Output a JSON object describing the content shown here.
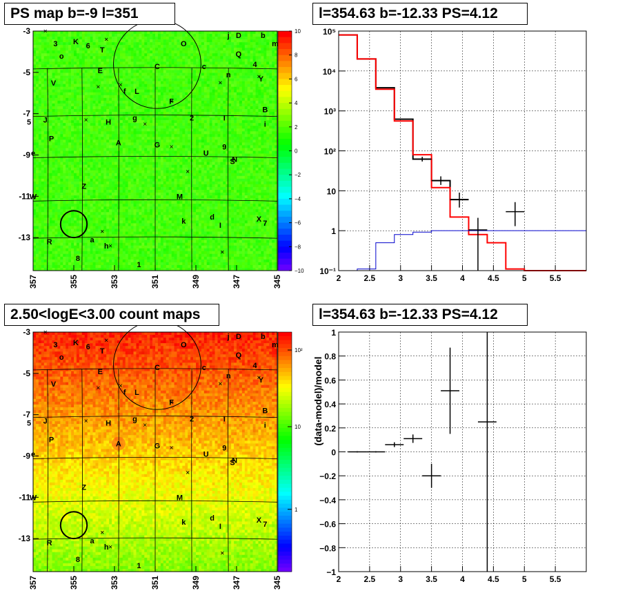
{
  "panels": {
    "ps_map": {
      "title": "PS map b=-9 l=351",
      "y_ticks": [
        "-3",
        "-5",
        "-7",
        "-9",
        "-11",
        "-13"
      ],
      "x_ticks": [
        "357",
        "355",
        "353",
        "351",
        "349",
        "347",
        "345"
      ],
      "palette_ticks": [
        "10",
        "8",
        "6",
        "4",
        "2",
        "0",
        "−2",
        "−4",
        "−6",
        "−8",
        "−10"
      ],
      "palette_range": [
        -10,
        10
      ]
    },
    "count_map": {
      "title": "2.50<logE<3.00 count maps",
      "y_ticks": [
        "-3",
        "-5",
        "-7",
        "-9",
        "-11",
        "-13"
      ],
      "x_ticks": [
        "357",
        "355",
        "353",
        "351",
        "349",
        "347",
        "345"
      ],
      "palette_ticks": [
        "10²",
        "10",
        "1"
      ],
      "palette_range": "log"
    },
    "spectrum": {
      "title": "l=354.63 b=-12.33 PS=4.12"
    },
    "residual": {
      "title": "l=354.63 b=-12.33 PS=4.12"
    }
  },
  "source_labels": [
    {
      "t": "3",
      "l": 355.9,
      "b": -3.6
    },
    {
      "t": "K",
      "l": 354.9,
      "b": -3.5
    },
    {
      "t": "6",
      "l": 354.3,
      "b": -3.7
    },
    {
      "t": "T",
      "l": 353.6,
      "b": -3.9
    },
    {
      "t": "o",
      "l": 355.6,
      "b": -4.2
    },
    {
      "t": "O",
      "l": 349.6,
      "b": -3.6
    },
    {
      "t": "j",
      "l": 347.4,
      "b": -3.2
    },
    {
      "t": "D",
      "l": 346.9,
      "b": -3.2
    },
    {
      "t": "b",
      "l": 345.7,
      "b": -3.2
    },
    {
      "t": "m",
      "l": 345.1,
      "b": -3.6
    },
    {
      "t": "Q",
      "l": 346.9,
      "b": -4.1
    },
    {
      "t": "4",
      "l": 346.1,
      "b": -4.6
    },
    {
      "t": "C",
      "l": 350.9,
      "b": -4.7
    },
    {
      "t": "c",
      "l": 348.6,
      "b": -4.7
    },
    {
      "t": "E",
      "l": 353.7,
      "b": -4.9
    },
    {
      "t": "n",
      "l": 347.4,
      "b": -5.1
    },
    {
      "t": "Y",
      "l": 345.8,
      "b": -5.3
    },
    {
      "t": "V",
      "l": 356.0,
      "b": -5.5
    },
    {
      "t": "f",
      "l": 352.5,
      "b": -5.9
    },
    {
      "t": "L",
      "l": 351.9,
      "b": -5.9
    },
    {
      "t": "F",
      "l": 350.2,
      "b": -6.4
    },
    {
      "t": "B",
      "l": 345.6,
      "b": -6.8
    },
    {
      "t": "5",
      "l": 357.2,
      "b": -7.4
    },
    {
      "t": "J",
      "l": 356.4,
      "b": -7.3
    },
    {
      "t": "H",
      "l": 353.3,
      "b": -7.4
    },
    {
      "t": "g",
      "l": 352.0,
      "b": -7.2
    },
    {
      "t": "2",
      "l": 349.2,
      "b": -7.2
    },
    {
      "t": "I",
      "l": 347.6,
      "b": -7.2
    },
    {
      "t": "i",
      "l": 345.6,
      "b": -7.5
    },
    {
      "t": "P",
      "l": 356.1,
      "b": -8.2
    },
    {
      "t": "A",
      "l": 352.8,
      "b": -8.4
    },
    {
      "t": "G",
      "l": 350.9,
      "b": -8.5
    },
    {
      "t": "9",
      "l": 347.6,
      "b": -8.6
    },
    {
      "t": "U",
      "l": 348.5,
      "b": -8.9
    },
    {
      "t": "e",
      "l": 357.0,
      "b": -8.9
    },
    {
      "t": "S",
      "l": 347.2,
      "b": -9.3
    },
    {
      "t": "N",
      "l": 347.1,
      "b": -9.2
    },
    {
      "t": "Z",
      "l": 354.5,
      "b": -10.5
    },
    {
      "t": "W",
      "l": 357.0,
      "b": -11.0
    },
    {
      "t": "M",
      "l": 349.8,
      "b": -11.0
    },
    {
      "t": "k",
      "l": 349.6,
      "b": -12.2
    },
    {
      "t": "d",
      "l": 348.2,
      "b": -12.0
    },
    {
      "t": "I",
      "l": 347.8,
      "b": -12.4
    },
    {
      "t": "X",
      "l": 345.9,
      "b": -12.1
    },
    {
      "t": "7",
      "l": 345.6,
      "b": -12.3
    },
    {
      "t": "R",
      "l": 356.2,
      "b": -13.2
    },
    {
      "t": "a",
      "l": 354.1,
      "b": -13.1
    },
    {
      "t": "h",
      "l": 353.4,
      "b": -13.4
    },
    {
      "t": "8",
      "l": 354.8,
      "b": -14.0
    },
    {
      "t": "1",
      "l": 351.8,
      "b": -14.3
    }
  ],
  "crosses": [
    {
      "l": 356.4,
      "b": -3.0
    },
    {
      "l": 353.4,
      "b": -3.4
    },
    {
      "l": 353.8,
      "b": -5.7
    },
    {
      "l": 352.7,
      "b": -5.6
    },
    {
      "l": 354.4,
      "b": -7.3
    },
    {
      "l": 351.5,
      "b": -7.5
    },
    {
      "l": 350.2,
      "b": -6.4
    },
    {
      "l": 350.2,
      "b": -8.6
    },
    {
      "l": 349.4,
      "b": -9.8
    },
    {
      "l": 347.8,
      "b": -5.5
    },
    {
      "l": 345.9,
      "b": -5.2
    },
    {
      "l": 353.6,
      "b": -12.7
    },
    {
      "l": 347.7,
      "b": -13.7
    },
    {
      "l": 353.2,
      "b": -13.4
    }
  ],
  "circles": [
    {
      "l": 350.9,
      "b": -4.6,
      "r": 2.15
    },
    {
      "l": 355.0,
      "b": -12.35,
      "r": 0.65
    }
  ],
  "chart_data": [
    {
      "type": "heatmap",
      "title": "PS map b=-9 l=351",
      "xlabel": "",
      "ylabel": "",
      "xlim": [
        357,
        345
      ],
      "ylim": [
        -14.6,
        -3
      ],
      "zlim": [
        -10,
        10
      ],
      "note_values": "significance map, mostly 0 to 3"
    },
    {
      "type": "heatmap",
      "title": "2.50<logE<3.00 count maps",
      "xlim": [
        357,
        345
      ],
      "ylim": [
        -14.6,
        -3
      ],
      "zlim_log": [
        0.4,
        250
      ],
      "gradient_top_to_bottom": [
        150,
        80,
        30,
        12,
        6,
        3
      ]
    },
    {
      "type": "line",
      "title": "l=354.63 b=-12.33 PS=4.12",
      "xlim": [
        2,
        6
      ],
      "ylim_log": [
        0.1,
        100000
      ],
      "series": [
        {
          "name": "",
          "color": "#000000",
          "style": "step",
          "x": [
            2.0,
            2.3,
            2.6,
            2.9,
            3.2,
            3.5,
            3.8,
            4.1,
            4.4,
            4.7,
            5.0
          ],
          "values": [
            80000,
            20000,
            3800,
            620,
            62,
            18,
            6,
            0,
            0,
            0,
            0
          ],
          "errors": [
            null,
            null,
            null,
            null,
            8,
            6,
            3,
            1.8,
            0.9,
            1.6,
            0
          ]
        },
        {
          "name": "",
          "color": "#ff0000",
          "style": "step",
          "x": [
            2.0,
            2.3,
            2.6,
            2.9,
            3.2,
            3.5,
            3.8,
            4.1,
            4.4,
            4.7,
            5.0
          ],
          "values": [
            80000,
            20000,
            3500,
            560,
            80,
            12,
            2.2,
            0.8,
            0.5,
            0.11,
            0.1
          ]
        },
        {
          "name": "",
          "color": "#0000cc",
          "style": "step",
          "x": [
            2.0,
            2.3,
            2.6,
            2.9,
            3.2,
            3.5,
            3.8,
            4.1,
            4.4,
            4.7,
            5.0
          ],
          "values": [
            0.1,
            0.11,
            0.5,
            0.8,
            0.92,
            1.0,
            1.0,
            1.0,
            1.0,
            1.0,
            1.0
          ]
        }
      ],
      "points": [
        {
          "x": 3.35,
          "y": 62,
          "ex": 0.15,
          "elo": 54,
          "ehi": 71
        },
        {
          "x": 3.65,
          "y": 18,
          "ex": 0.15,
          "elo": 14,
          "ehi": 23
        },
        {
          "x": 3.95,
          "y": 6,
          "ex": 0.15,
          "elo": 3.8,
          "ehi": 9
        },
        {
          "x": 4.25,
          "y": 1.05,
          "ex": 0.15,
          "elo": 0.1,
          "ehi": 2.1
        },
        {
          "x": 4.85,
          "y": 3,
          "ex": 0.15,
          "elo": 1.3,
          "ehi": 5.2
        }
      ],
      "x_ticks": [
        "2",
        "2.5",
        "3",
        "3.5",
        "4",
        "4.5",
        "5",
        "5.5"
      ],
      "y_ticks": [
        "10⁻¹",
        "1",
        "10",
        "10²",
        "10³",
        "10⁴",
        "10⁵"
      ]
    },
    {
      "type": "scatter",
      "title": "l=354.63 b=-12.33 PS=4.12",
      "xlabel": "",
      "ylabel": "(data-model)/model",
      "xlim": [
        2,
        6
      ],
      "ylim": [
        -1,
        1
      ],
      "points": [
        {
          "x": 2.3,
          "y": 0.0,
          "ex": 0.15,
          "ey": 0.005
        },
        {
          "x": 2.6,
          "y": 0.0,
          "ex": 0.15,
          "ey": 0.005
        },
        {
          "x": 2.9,
          "y": 0.06,
          "ex": 0.15,
          "ey": 0.02
        },
        {
          "x": 3.2,
          "y": 0.11,
          "ex": 0.15,
          "ey": 0.035
        },
        {
          "x": 3.5,
          "y": -0.2,
          "ex": 0.15,
          "ey": 0.1
        },
        {
          "x": 3.8,
          "y": 0.51,
          "ex": 0.15,
          "ey": 0.36
        },
        {
          "x": 4.4,
          "y": 0.25,
          "ex": 0.15,
          "ey": 1.3
        }
      ],
      "x_ticks": [
        "2",
        "2.5",
        "3",
        "3.5",
        "4",
        "4.5",
        "5",
        "5.5"
      ],
      "y_ticks": [
        "1",
        "0.8",
        "0.6",
        "0.4",
        "0.2",
        "0",
        "−0.2",
        "−0.4",
        "−0.6",
        "−0.8",
        "−1"
      ]
    }
  ]
}
